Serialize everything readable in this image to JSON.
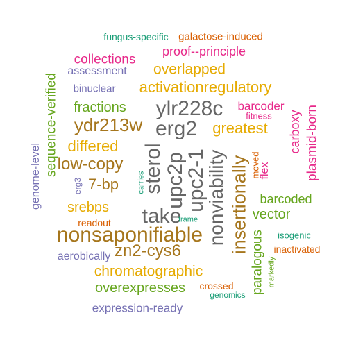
{
  "palette": {
    "teal": "#1b9e77",
    "orange": "#d95f02",
    "purple": "#7570b3",
    "magenta": "#e7298a",
    "green": "#66a61e",
    "gold": "#e6ab02",
    "brown": "#a6761d",
    "gray": "#666666"
  },
  "words": [
    "fungus-specific",
    "galactose-induced",
    "proof--principle",
    "collections",
    "overlapped",
    "assessment",
    "binuclear",
    "activationregulatory",
    "fractions",
    "ylr228c",
    "barcoder",
    "fitness",
    "ydr213w",
    "erg2",
    "greatest",
    "carboxy",
    "differed",
    "sterol",
    "upc2p",
    "upc2-1",
    "nonviability",
    "insertionally",
    "plasmid-born",
    "low-copy",
    "sequence-verified",
    "genome-level",
    "erg3",
    "carries",
    "7-bp",
    "moved",
    "flex",
    "srebps",
    "barcoded",
    "take",
    "vector",
    "readout",
    "frame",
    "nonsaponifiable",
    "isogenic",
    "zn2-cys6",
    "paralogous",
    "inactivated",
    "aerobically",
    "chromatographic",
    "markedly",
    "overexpresses",
    "crossed",
    "genomics",
    "expression-ready"
  ]
}
